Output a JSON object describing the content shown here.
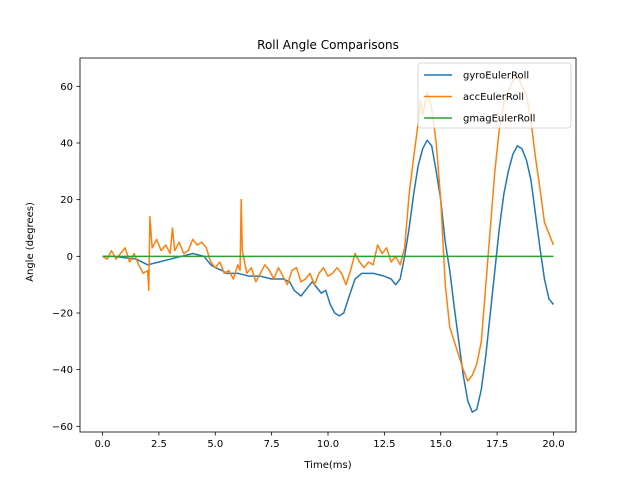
{
  "chart_data": {
    "type": "line",
    "title": "Roll Angle Comparisons",
    "xlabel": "Time(ms)",
    "ylabel": "Angle (degrees)",
    "xlim": [
      -1.0,
      21.0
    ],
    "ylim": [
      -62,
      70
    ],
    "xticks": [
      0.0,
      2.5,
      5.0,
      7.5,
      10.0,
      12.5,
      15.0,
      17.5,
      20.0
    ],
    "xtick_labels": [
      "0.0",
      "2.5",
      "5.0",
      "7.5",
      "10.0",
      "12.5",
      "15.0",
      "17.5",
      "20.0"
    ],
    "yticks": [
      -60,
      -40,
      -20,
      0,
      20,
      40,
      60
    ],
    "ytick_labels": [
      "−60",
      "−40",
      "−20",
      "0",
      "20",
      "40",
      "60"
    ],
    "grid": false,
    "legend_position": "top-right",
    "series": [
      {
        "name": "gyroEulerRoll",
        "color": "#1f77b4",
        "points": [
          [
            0.0,
            0
          ],
          [
            0.5,
            0
          ],
          [
            1.0,
            -0.5
          ],
          [
            1.5,
            -1
          ],
          [
            2.0,
            -3
          ],
          [
            2.5,
            -2
          ],
          [
            3.0,
            -1
          ],
          [
            3.5,
            0
          ],
          [
            4.0,
            1
          ],
          [
            4.5,
            0
          ],
          [
            4.8,
            -3
          ],
          [
            5.0,
            -4
          ],
          [
            5.3,
            -5
          ],
          [
            5.5,
            -6
          ],
          [
            6.0,
            -6
          ],
          [
            6.5,
            -7
          ],
          [
            7.0,
            -7
          ],
          [
            7.5,
            -8
          ],
          [
            8.0,
            -8
          ],
          [
            8.3,
            -9
          ],
          [
            8.5,
            -12
          ],
          [
            8.8,
            -14
          ],
          [
            9.0,
            -12
          ],
          [
            9.3,
            -9
          ],
          [
            9.5,
            -11
          ],
          [
            9.7,
            -13
          ],
          [
            9.9,
            -12
          ],
          [
            10.1,
            -17
          ],
          [
            10.3,
            -20
          ],
          [
            10.5,
            -21
          ],
          [
            10.7,
            -20
          ],
          [
            10.9,
            -15
          ],
          [
            11.2,
            -8
          ],
          [
            11.5,
            -6
          ],
          [
            12.0,
            -6
          ],
          [
            12.5,
            -7
          ],
          [
            12.8,
            -8
          ],
          [
            13.0,
            -10
          ],
          [
            13.2,
            -8
          ],
          [
            13.4,
            0
          ],
          [
            13.6,
            10
          ],
          [
            13.8,
            22
          ],
          [
            14.0,
            32
          ],
          [
            14.2,
            38
          ],
          [
            14.4,
            41
          ],
          [
            14.6,
            39
          ],
          [
            14.8,
            30
          ],
          [
            15.0,
            20
          ],
          [
            15.2,
            5
          ],
          [
            15.4,
            -5
          ],
          [
            15.6,
            -18
          ],
          [
            15.8,
            -30
          ],
          [
            16.0,
            -42
          ],
          [
            16.2,
            -51
          ],
          [
            16.4,
            -55
          ],
          [
            16.6,
            -54
          ],
          [
            16.8,
            -47
          ],
          [
            17.0,
            -35
          ],
          [
            17.2,
            -20
          ],
          [
            17.4,
            -5
          ],
          [
            17.6,
            10
          ],
          [
            17.8,
            22
          ],
          [
            18.0,
            30
          ],
          [
            18.2,
            36
          ],
          [
            18.4,
            39
          ],
          [
            18.6,
            38
          ],
          [
            18.8,
            34
          ],
          [
            19.0,
            27
          ],
          [
            19.2,
            15
          ],
          [
            19.4,
            3
          ],
          [
            19.6,
            -8
          ],
          [
            19.8,
            -15
          ],
          [
            20.0,
            -17
          ]
        ]
      },
      {
        "name": "accEulerRoll",
        "color": "#ff7f0e",
        "points": [
          [
            0.0,
            0
          ],
          [
            0.2,
            -1
          ],
          [
            0.4,
            2
          ],
          [
            0.6,
            -1
          ],
          [
            0.8,
            1
          ],
          [
            1.0,
            3
          ],
          [
            1.2,
            -2
          ],
          [
            1.4,
            1
          ],
          [
            1.6,
            -3
          ],
          [
            1.8,
            -6
          ],
          [
            2.0,
            -5
          ],
          [
            2.05,
            -12
          ],
          [
            2.1,
            14
          ],
          [
            2.2,
            3
          ],
          [
            2.4,
            6
          ],
          [
            2.6,
            2
          ],
          [
            2.8,
            4
          ],
          [
            3.0,
            1
          ],
          [
            3.1,
            10
          ],
          [
            3.2,
            2
          ],
          [
            3.4,
            5
          ],
          [
            3.6,
            1
          ],
          [
            3.8,
            2
          ],
          [
            4.0,
            6
          ],
          [
            4.2,
            4
          ],
          [
            4.4,
            5
          ],
          [
            4.6,
            3
          ],
          [
            4.8,
            -2
          ],
          [
            5.0,
            -4
          ],
          [
            5.2,
            -2
          ],
          [
            5.4,
            -6
          ],
          [
            5.6,
            -5
          ],
          [
            5.8,
            -8
          ],
          [
            6.0,
            -3
          ],
          [
            6.1,
            -5
          ],
          [
            6.15,
            20
          ],
          [
            6.2,
            2
          ],
          [
            6.4,
            -6
          ],
          [
            6.6,
            -4
          ],
          [
            6.8,
            -9
          ],
          [
            7.0,
            -6
          ],
          [
            7.2,
            -3
          ],
          [
            7.4,
            -5
          ],
          [
            7.6,
            -8
          ],
          [
            7.8,
            -4
          ],
          [
            8.0,
            -7
          ],
          [
            8.2,
            -10
          ],
          [
            8.4,
            -5
          ],
          [
            8.6,
            -4
          ],
          [
            8.8,
            -9
          ],
          [
            9.0,
            -8
          ],
          [
            9.2,
            -6
          ],
          [
            9.4,
            -10
          ],
          [
            9.6,
            -6
          ],
          [
            9.8,
            -4
          ],
          [
            10.0,
            -7
          ],
          [
            10.2,
            -6
          ],
          [
            10.4,
            -4
          ],
          [
            10.6,
            -6
          ],
          [
            10.8,
            -10
          ],
          [
            11.0,
            -5
          ],
          [
            11.2,
            1
          ],
          [
            11.4,
            -2
          ],
          [
            11.6,
            -4
          ],
          [
            11.8,
            -2
          ],
          [
            12.0,
            -3
          ],
          [
            12.2,
            4
          ],
          [
            12.4,
            1
          ],
          [
            12.6,
            3
          ],
          [
            12.8,
            -2
          ],
          [
            13.0,
            0
          ],
          [
            13.2,
            -3
          ],
          [
            13.4,
            3
          ],
          [
            13.6,
            22
          ],
          [
            13.8,
            35
          ],
          [
            14.0,
            47
          ],
          [
            14.1,
            55
          ],
          [
            14.2,
            50
          ],
          [
            14.4,
            58
          ],
          [
            14.6,
            52
          ],
          [
            14.8,
            40
          ],
          [
            15.0,
            20
          ],
          [
            15.2,
            -10
          ],
          [
            15.4,
            -25
          ],
          [
            15.6,
            -30
          ],
          [
            15.8,
            -35
          ],
          [
            16.0,
            -40
          ],
          [
            16.2,
            -44
          ],
          [
            16.4,
            -42
          ],
          [
            16.6,
            -38
          ],
          [
            16.8,
            -30
          ],
          [
            17.0,
            -10
          ],
          [
            17.2,
            10
          ],
          [
            17.4,
            30
          ],
          [
            17.6,
            45
          ],
          [
            17.8,
            54
          ],
          [
            18.0,
            58
          ],
          [
            18.2,
            62
          ],
          [
            18.4,
            64
          ],
          [
            18.6,
            60
          ],
          [
            18.8,
            57
          ],
          [
            19.0,
            48
          ],
          [
            19.2,
            35
          ],
          [
            19.4,
            24
          ],
          [
            19.6,
            12
          ],
          [
            19.8,
            8
          ],
          [
            20.0,
            4
          ]
        ]
      },
      {
        "name": "gmagEulerRoll",
        "color": "#2ca02c",
        "points": [
          [
            0.0,
            0
          ],
          [
            20.0,
            0
          ]
        ]
      }
    ]
  }
}
